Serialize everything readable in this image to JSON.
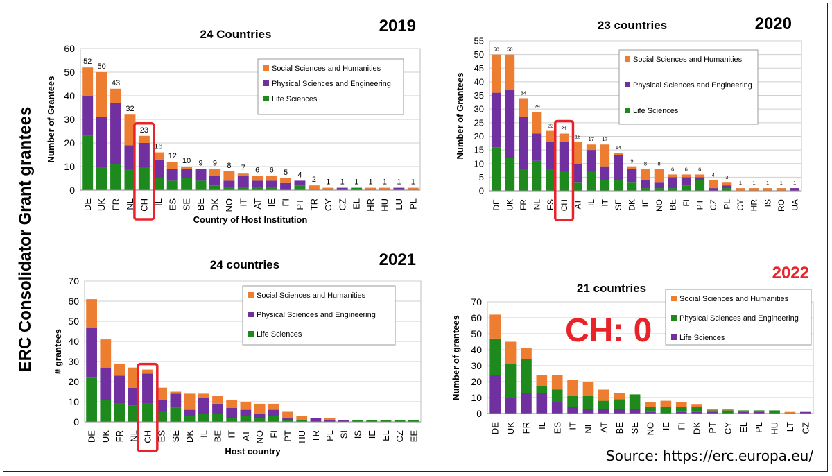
{
  "figure": {
    "side_title": "ERC Consolidator Grant grantees",
    "source": "Source: https://erc.europa.eu/",
    "highlight_color": "#e8232a"
  },
  "colors": {
    "ssh": "#ed7d31",
    "pse": "#7030a0",
    "ls": "#1e8a1e"
  },
  "chart_data": [
    {
      "type": "bar",
      "stacked": true,
      "year": "2019",
      "title": "24 Countries",
      "xlabel": "Country of Host Institution",
      "ylabel": "Number of Grantees",
      "ylim": [
        0,
        60
      ],
      "yticks": [
        0,
        10,
        20,
        30,
        40,
        50,
        60
      ],
      "grid": true,
      "legend_position": "top-right",
      "highlight": "CH",
      "categories": [
        "DE",
        "UK",
        "FR",
        "NL",
        "CH",
        "IL",
        "ES",
        "SE",
        "BE",
        "DK",
        "NO",
        "IT",
        "AT",
        "IE",
        "FI",
        "PT",
        "TR",
        "CY",
        "CZ",
        "EL",
        "HR",
        "HU",
        "LU",
        "PL"
      ],
      "totals": [
        "52",
        "50",
        "43",
        "32",
        "23",
        "16",
        "12",
        "10",
        "9",
        "9",
        "8",
        "7",
        "6",
        "6",
        "5",
        "4",
        "2",
        "1",
        "1",
        "1",
        "1",
        "1",
        "1",
        "1"
      ],
      "series": [
        {
          "name": "Life Sciences",
          "color_key": "ls",
          "values": [
            23,
            10,
            11,
            9,
            10,
            5,
            4,
            5,
            4,
            2,
            1,
            1,
            1,
            1,
            0,
            2,
            0,
            0,
            0,
            1,
            0,
            0,
            0,
            0
          ]
        },
        {
          "name": "Physical Sciences and Engineering",
          "color_key": "pse",
          "values": [
            17,
            21,
            26,
            10,
            10,
            8,
            5,
            4,
            5,
            4,
            3,
            5,
            3,
            3,
            3,
            2,
            0,
            0,
            1,
            0,
            0,
            0,
            1,
            0
          ]
        },
        {
          "name": "Social Sciences and Humanities",
          "color_key": "ssh",
          "values": [
            12,
            19,
            6,
            13,
            3,
            3,
            3,
            1,
            0,
            3,
            4,
            1,
            2,
            2,
            2,
            0,
            2,
            1,
            0,
            0,
            1,
            1,
            0,
            1
          ]
        }
      ],
      "legend": [
        "Social Sciences and Humanities",
        "Physical Sciences and Engineering",
        "Life Sciences"
      ],
      "legend_keys": [
        "ssh",
        "pse",
        "ls"
      ]
    },
    {
      "type": "bar",
      "stacked": true,
      "year": "2020",
      "title": "23 countries",
      "xlabel": "",
      "ylabel": "Number of Grantees",
      "ylim": [
        0,
        55
      ],
      "yticks": [
        0,
        5,
        10,
        15,
        20,
        25,
        30,
        35,
        40,
        45,
        50,
        55
      ],
      "grid": true,
      "legend_position": "top-right",
      "highlight": "CH",
      "categories": [
        "DE",
        "UK",
        "FR",
        "NL",
        "ES",
        "CH",
        "AT",
        "IL",
        "IT",
        "SE",
        "DK",
        "IE",
        "NO",
        "BE",
        "FI",
        "PT",
        "CZ",
        "PL",
        "CY",
        "HR",
        "IS",
        "RO",
        "UA"
      ],
      "totals": [
        "50",
        "50",
        "34",
        "29",
        "22",
        "21",
        "18",
        "17",
        "17",
        "14",
        "9",
        "8",
        "8",
        "6",
        "6",
        "6",
        "4",
        "3",
        "1",
        "1",
        "1",
        "1",
        "1"
      ],
      "series": [
        {
          "name": "Life Sciences",
          "color_key": "ls",
          "values": [
            16,
            12,
            8,
            11,
            8,
            7,
            3,
            7,
            4,
            4,
            3,
            1,
            1,
            1,
            2,
            4,
            0,
            1,
            0,
            0,
            0,
            0,
            0
          ]
        },
        {
          "name": "Physical Sciences and Engineering",
          "color_key": "pse",
          "values": [
            20,
            25,
            19,
            10,
            10,
            11,
            7,
            8,
            5,
            9,
            5,
            3,
            2,
            4,
            3,
            1,
            1,
            1,
            0,
            0,
            0,
            0,
            1
          ]
        },
        {
          "name": "Social Sciences and Humanities",
          "color_key": "ssh",
          "values": [
            14,
            13,
            7,
            8,
            4,
            3,
            8,
            2,
            8,
            1,
            1,
            4,
            5,
            1,
            1,
            1,
            3,
            1,
            1,
            1,
            1,
            1,
            0
          ]
        }
      ],
      "legend": [
        "Social Sciences and Humanities",
        "Physical Sciences and Engineering",
        "Life Sciences"
      ],
      "legend_keys": [
        "ssh",
        "pse",
        "ls"
      ]
    },
    {
      "type": "bar",
      "stacked": true,
      "year": "2021",
      "title": "24 countries",
      "xlabel": "Host country",
      "ylabel": "# grantees",
      "ylim": [
        0,
        70
      ],
      "yticks": [
        0,
        10,
        20,
        30,
        40,
        50,
        60,
        70
      ],
      "grid": true,
      "legend_position": "top-right",
      "highlight": "CH",
      "categories": [
        "DE",
        "UK",
        "FR",
        "NL",
        "CH",
        "ES",
        "SE",
        "DK",
        "IL",
        "BE",
        "IT",
        "AT",
        "NO",
        "FI",
        "PT",
        "HU",
        "TR",
        "PL",
        "SI",
        "IS",
        "IE",
        "EL",
        "CZ",
        "EE"
      ],
      "series": [
        {
          "name": "Life Sciences",
          "color_key": "ls",
          "values": [
            22,
            11,
            9,
            8,
            9,
            5,
            7,
            3,
            4,
            4,
            2,
            3,
            2,
            3,
            1,
            1,
            0,
            0,
            0,
            1,
            1,
            1,
            1,
            1
          ]
        },
        {
          "name": "Physical Sciences and Engineering",
          "color_key": "pse",
          "values": [
            25,
            16,
            14,
            9,
            15,
            6,
            7,
            3,
            8,
            5,
            5,
            3,
            2,
            3,
            1,
            0,
            2,
            1,
            1,
            0,
            0,
            0,
            0,
            0
          ]
        },
        {
          "name": "Social Sciences and Humanities",
          "color_key": "ssh",
          "values": [
            14,
            14,
            6,
            10,
            2,
            6,
            1,
            8,
            2,
            4,
            4,
            4,
            5,
            3,
            3,
            2,
            0,
            1,
            0,
            0,
            0,
            0,
            0,
            0
          ]
        }
      ],
      "legend": [
        "Social Sciences and Humanities",
        "Physical Sciences and Engineering",
        "Life Sciences"
      ],
      "legend_keys": [
        "ssh",
        "pse",
        "ls"
      ]
    },
    {
      "type": "bar",
      "stacked": true,
      "year": "2022",
      "title": "21 countries",
      "xlabel": "",
      "ylabel": "Number of grantees",
      "ylim": [
        0,
        70
      ],
      "yticks": [
        0,
        10,
        20,
        30,
        40,
        50,
        60,
        70
      ],
      "grid": true,
      "legend_position": "top-right",
      "annotation": "CH: 0",
      "categories": [
        "DE",
        "UK",
        "FR",
        "IL",
        "ES",
        "IT",
        "NL",
        "AT",
        "BE",
        "SE",
        "NO",
        "IE",
        "FI",
        "DK",
        "PT",
        "CY",
        "EL",
        "PL",
        "HU",
        "LT",
        "CZ"
      ],
      "series": [
        {
          "name": "Life Sciences",
          "color_key": "pse",
          "values": [
            24,
            10,
            13,
            13,
            7,
            4,
            3,
            3,
            3,
            3,
            1,
            0,
            1,
            1,
            1,
            0,
            1,
            1,
            0,
            0,
            1
          ]
        },
        {
          "name": "Physical Sciences and Engineering",
          "color_key": "ls",
          "values": [
            23,
            21,
            21,
            4,
            8,
            7,
            8,
            5,
            6,
            9,
            3,
            4,
            3,
            3,
            1,
            2,
            1,
            1,
            2,
            0,
            0
          ]
        },
        {
          "name": "Social Sciences and Humanities",
          "color_key": "ssh",
          "values": [
            15,
            14,
            7,
            7,
            9,
            10,
            9,
            7,
            4,
            0,
            3,
            4,
            3,
            2,
            1,
            1,
            0,
            0,
            0,
            1,
            0
          ]
        }
      ],
      "legend": [
        "Social Sciences and Humanities",
        "Physical Sciences and Engineering",
        "Life Sciences"
      ],
      "legend_keys": [
        "ssh",
        "ls",
        "pse"
      ]
    }
  ]
}
